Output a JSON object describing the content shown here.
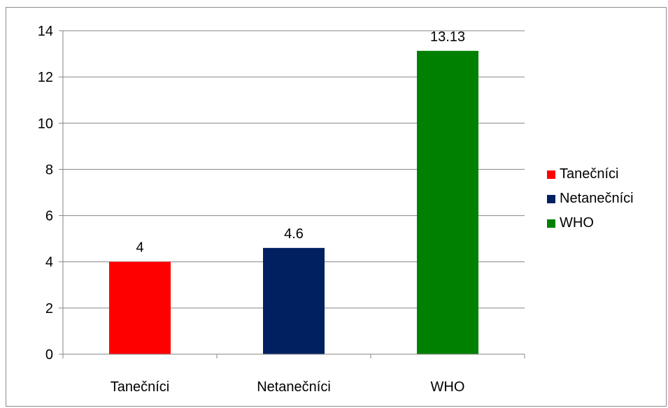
{
  "chart_data": {
    "type": "bar",
    "categories": [
      "Tanečníci",
      "Netanečníci",
      "WHO"
    ],
    "values": [
      4,
      4.6,
      13.13
    ],
    "data_labels": [
      "4",
      "4.6",
      "13.13"
    ],
    "colors": [
      "#ff0000",
      "#002060",
      "#008000"
    ],
    "ylim": [
      0,
      14
    ],
    "yticks": [
      "0",
      "2",
      "4",
      "6",
      "8",
      "10",
      "12",
      "14"
    ],
    "grid": true,
    "legend_position": "right",
    "legend": [
      {
        "label": "Tanečníci",
        "color": "#ff0000"
      },
      {
        "label": "Netanečníci",
        "color": "#002060"
      },
      {
        "label": "WHO",
        "color": "#008000"
      }
    ]
  }
}
